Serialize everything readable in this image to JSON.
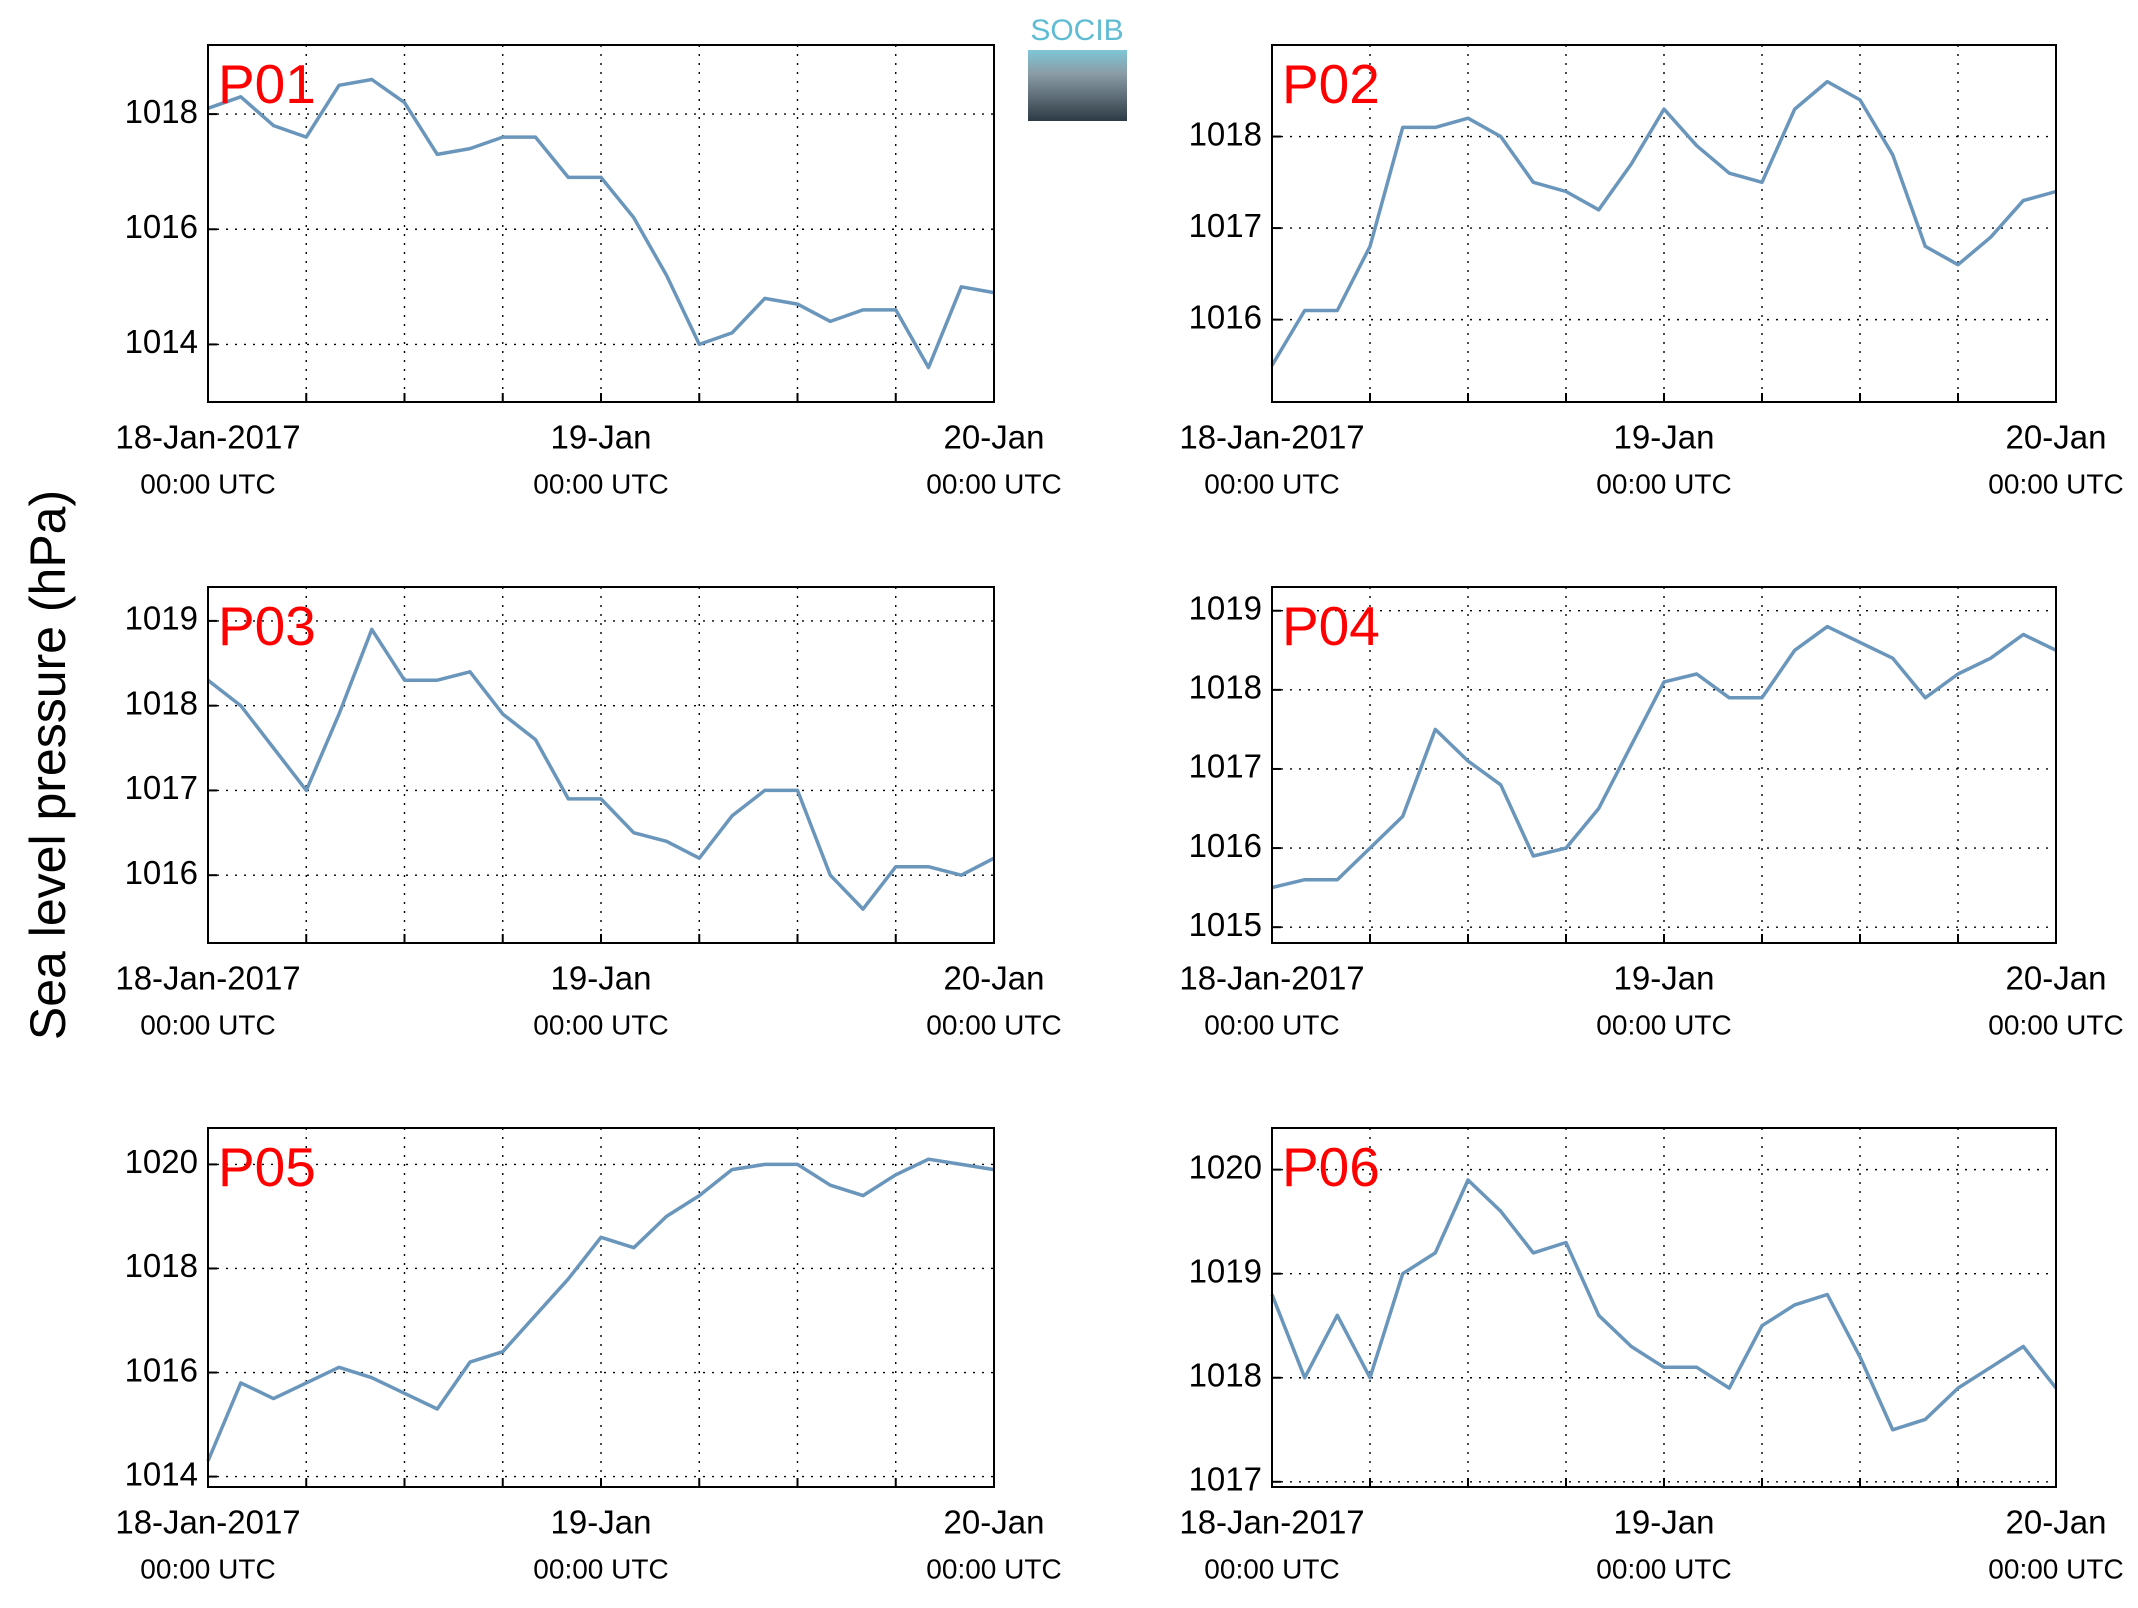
{
  "ylabel": "Sea level pressure (hPa)",
  "logo_text": "SOCIB",
  "chart_data": [
    {
      "type": "line",
      "title": "P01",
      "color": "#6a96bb",
      "x": [
        0,
        2,
        4,
        6,
        8,
        10,
        12,
        14,
        16,
        18,
        20,
        22,
        24,
        26,
        28,
        30,
        32,
        34,
        36,
        38,
        40,
        42,
        44,
        46,
        48
      ],
      "values": [
        1018.1,
        1018.3,
        1017.8,
        1017.6,
        1018.5,
        1018.6,
        1018.2,
        1017.3,
        1017.4,
        1017.6,
        1017.6,
        1016.9,
        1016.9,
        1016.2,
        1015.2,
        1014.0,
        1014.2,
        1014.8,
        1014.7,
        1014.4,
        1014.6,
        1014.6,
        1013.6,
        1015.0,
        1014.9
      ],
      "xlim": [
        0,
        48
      ],
      "xticks": [
        {
          "value": 0,
          "label": [
            "18-Jan-2017",
            "00:00 UTC"
          ]
        },
        {
          "value": 6,
          "label": null
        },
        {
          "value": 12,
          "label": null
        },
        {
          "value": 18,
          "label": null
        },
        {
          "value": 24,
          "label": [
            "19-Jan",
            "00:00 UTC"
          ]
        },
        {
          "value": 30,
          "label": null
        },
        {
          "value": 36,
          "label": null
        },
        {
          "value": 42,
          "label": null
        },
        {
          "value": 48,
          "label": [
            "20-Jan",
            "00:00 UTC"
          ]
        }
      ],
      "ylim": [
        1013,
        1019.2
      ],
      "yticks": [
        1014,
        1016,
        1018
      ],
      "grid": true
    },
    {
      "type": "line",
      "title": "P02",
      "color": "#6a96bb",
      "x": [
        0,
        2,
        4,
        6,
        8,
        10,
        12,
        14,
        16,
        18,
        20,
        22,
        24,
        26,
        28,
        30,
        32,
        34,
        36,
        38,
        40,
        42,
        44,
        46,
        48
      ],
      "values": [
        1015.5,
        1016.1,
        1016.1,
        1016.8,
        1018.1,
        1018.1,
        1018.2,
        1018.0,
        1017.5,
        1017.4,
        1017.2,
        1017.7,
        1018.3,
        1017.9,
        1017.6,
        1017.5,
        1018.3,
        1018.6,
        1018.4,
        1017.8,
        1016.8,
        1016.6,
        1016.9,
        1017.3,
        1017.4
      ],
      "xlim": [
        0,
        48
      ],
      "xticks": [
        {
          "value": 0,
          "label": [
            "18-Jan-2017",
            "00:00 UTC"
          ]
        },
        {
          "value": 6,
          "label": null
        },
        {
          "value": 12,
          "label": null
        },
        {
          "value": 18,
          "label": null
        },
        {
          "value": 24,
          "label": [
            "19-Jan",
            "00:00 UTC"
          ]
        },
        {
          "value": 30,
          "label": null
        },
        {
          "value": 36,
          "label": null
        },
        {
          "value": 42,
          "label": null
        },
        {
          "value": 48,
          "label": [
            "20-Jan",
            "00:00 UTC"
          ]
        }
      ],
      "ylim": [
        1015.1,
        1019
      ],
      "yticks": [
        1016,
        1017,
        1018
      ],
      "grid": true
    },
    {
      "type": "line",
      "title": "P03",
      "color": "#6a96bb",
      "x": [
        0,
        2,
        4,
        6,
        8,
        10,
        12,
        14,
        16,
        18,
        20,
        22,
        24,
        26,
        28,
        30,
        32,
        34,
        36,
        38,
        40,
        42,
        44,
        46,
        48
      ],
      "values": [
        1018.3,
        1018.0,
        1017.5,
        1017.0,
        1017.9,
        1018.9,
        1018.3,
        1018.3,
        1018.4,
        1017.9,
        1017.6,
        1016.9,
        1016.9,
        1016.5,
        1016.4,
        1016.2,
        1016.7,
        1017.0,
        1017.0,
        1016.0,
        1015.6,
        1016.1,
        1016.1,
        1016.0,
        1016.2
      ],
      "xlim": [
        0,
        48
      ],
      "xticks": [
        {
          "value": 0,
          "label": [
            "18-Jan-2017",
            "00:00 UTC"
          ]
        },
        {
          "value": 6,
          "label": null
        },
        {
          "value": 12,
          "label": null
        },
        {
          "value": 18,
          "label": null
        },
        {
          "value": 24,
          "label": [
            "19-Jan",
            "00:00 UTC"
          ]
        },
        {
          "value": 30,
          "label": null
        },
        {
          "value": 36,
          "label": null
        },
        {
          "value": 42,
          "label": null
        },
        {
          "value": 48,
          "label": [
            "20-Jan",
            "00:00 UTC"
          ]
        }
      ],
      "ylim": [
        1015.2,
        1019.4
      ],
      "yticks": [
        1016,
        1017,
        1018,
        1019
      ],
      "grid": true
    },
    {
      "type": "line",
      "title": "P04",
      "color": "#6a96bb",
      "x": [
        0,
        2,
        4,
        6,
        8,
        10,
        12,
        14,
        16,
        18,
        20,
        22,
        24,
        26,
        28,
        30,
        32,
        34,
        36,
        38,
        40,
        42,
        44,
        46,
        48
      ],
      "values": [
        1015.5,
        1015.6,
        1015.6,
        1016.0,
        1016.4,
        1017.5,
        1017.1,
        1016.8,
        1015.9,
        1016.0,
        1016.5,
        1017.3,
        1018.1,
        1018.2,
        1017.9,
        1017.9,
        1018.5,
        1018.8,
        1018.6,
        1018.4,
        1017.9,
        1018.2,
        1018.4,
        1018.7,
        1018.5
      ],
      "xlim": [
        0,
        48
      ],
      "xticks": [
        {
          "value": 0,
          "label": [
            "18-Jan-2017",
            "00:00 UTC"
          ]
        },
        {
          "value": 6,
          "label": null
        },
        {
          "value": 12,
          "label": null
        },
        {
          "value": 18,
          "label": null
        },
        {
          "value": 24,
          "label": [
            "19-Jan",
            "00:00 UTC"
          ]
        },
        {
          "value": 30,
          "label": null
        },
        {
          "value": 36,
          "label": null
        },
        {
          "value": 42,
          "label": null
        },
        {
          "value": 48,
          "label": [
            "20-Jan",
            "00:00 UTC"
          ]
        }
      ],
      "ylim": [
        1014.8,
        1019.3
      ],
      "yticks": [
        1015,
        1016,
        1017,
        1018,
        1019
      ],
      "grid": true
    },
    {
      "type": "line",
      "title": "P05",
      "color": "#6a96bb",
      "x": [
        0,
        2,
        4,
        6,
        8,
        10,
        12,
        14,
        16,
        18,
        20,
        22,
        24,
        26,
        28,
        30,
        32,
        34,
        36,
        38,
        40,
        42,
        44,
        46,
        48
      ],
      "values": [
        1014.3,
        1015.8,
        1015.5,
        1015.8,
        1016.1,
        1015.9,
        1015.6,
        1015.3,
        1016.2,
        1016.4,
        1017.1,
        1017.8,
        1018.6,
        1018.4,
        1019.0,
        1019.4,
        1019.9,
        1020.0,
        1020.0,
        1019.6,
        1019.4,
        1019.8,
        1020.1,
        1020.0,
        1019.9
      ],
      "xlim": [
        0,
        48
      ],
      "xticks": [
        {
          "value": 0,
          "label": [
            "18-Jan-2017",
            "00:00 UTC"
          ]
        },
        {
          "value": 6,
          "label": null
        },
        {
          "value": 12,
          "label": null
        },
        {
          "value": 18,
          "label": null
        },
        {
          "value": 24,
          "label": [
            "19-Jan",
            "00:00 UTC"
          ]
        },
        {
          "value": 30,
          "label": null
        },
        {
          "value": 36,
          "label": null
        },
        {
          "value": 42,
          "label": null
        },
        {
          "value": 48,
          "label": [
            "20-Jan",
            "00:00 UTC"
          ]
        }
      ],
      "ylim": [
        1013.8,
        1020.7
      ],
      "yticks": [
        1014,
        1016,
        1018,
        1020
      ],
      "grid": true
    },
    {
      "type": "line",
      "title": "P06",
      "color": "#6a96bb",
      "x": [
        0,
        2,
        4,
        6,
        8,
        10,
        12,
        14,
        16,
        18,
        20,
        22,
        24,
        26,
        28,
        30,
        32,
        34,
        36,
        38,
        40,
        42,
        44,
        46,
        48
      ],
      "values": [
        1018.8,
        1018.0,
        1018.6,
        1018.0,
        1019.0,
        1019.2,
        1019.9,
        1019.6,
        1019.2,
        1019.3,
        1018.6,
        1018.3,
        1018.1,
        1018.1,
        1017.9,
        1018.5,
        1018.7,
        1018.8,
        1018.2,
        1017.5,
        1017.6,
        1017.9,
        1018.1,
        1018.3,
        1017.9
      ],
      "xlim": [
        0,
        48
      ],
      "xticks": [
        {
          "value": 0,
          "label": [
            "18-Jan-2017",
            "00:00 UTC"
          ]
        },
        {
          "value": 6,
          "label": null
        },
        {
          "value": 12,
          "label": null
        },
        {
          "value": 18,
          "label": null
        },
        {
          "value": 24,
          "label": [
            "19-Jan",
            "00:00 UTC"
          ]
        },
        {
          "value": 30,
          "label": null
        },
        {
          "value": 36,
          "label": null
        },
        {
          "value": 42,
          "label": null
        },
        {
          "value": 48,
          "label": [
            "20-Jan",
            "00:00 UTC"
          ]
        }
      ],
      "ylim": [
        1016.95,
        1020.4
      ],
      "yticks": [
        1017,
        1018,
        1019,
        1020
      ],
      "grid": true
    }
  ]
}
